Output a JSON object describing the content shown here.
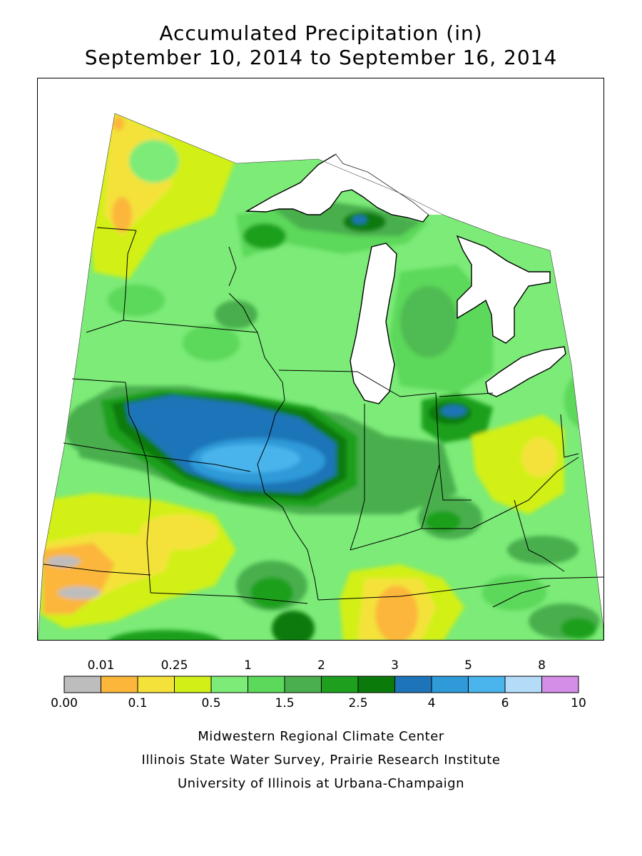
{
  "title": {
    "line1": "Accumulated Precipitation (in)",
    "line2": "September 10, 2014 to September 16, 2014"
  },
  "legend": {
    "colors": [
      "#bdbdbd",
      "#fcb63a",
      "#f4e23a",
      "#d2f018",
      "#7ceb78",
      "#5cd85a",
      "#4aaf4e",
      "#1ea01e",
      "#0a7a0a",
      "#1e74b8",
      "#2e9ad8",
      "#4ab4ec",
      "#b4dcf8",
      "#d48ee8"
    ],
    "upper_labels": [
      "0.01",
      "0.25",
      "1",
      "2",
      "3",
      "5",
      "8"
    ],
    "lower_labels": [
      "0.00",
      "0.1",
      "0.5",
      "1.5",
      "2.5",
      "4",
      "6",
      "10"
    ]
  },
  "credits": {
    "line1": "Midwestern Regional Climate Center",
    "line2": "Illinois State Water Survey, Prairie Research Institute",
    "line3": "University of Illinois at Urbana-Champaign"
  }
}
